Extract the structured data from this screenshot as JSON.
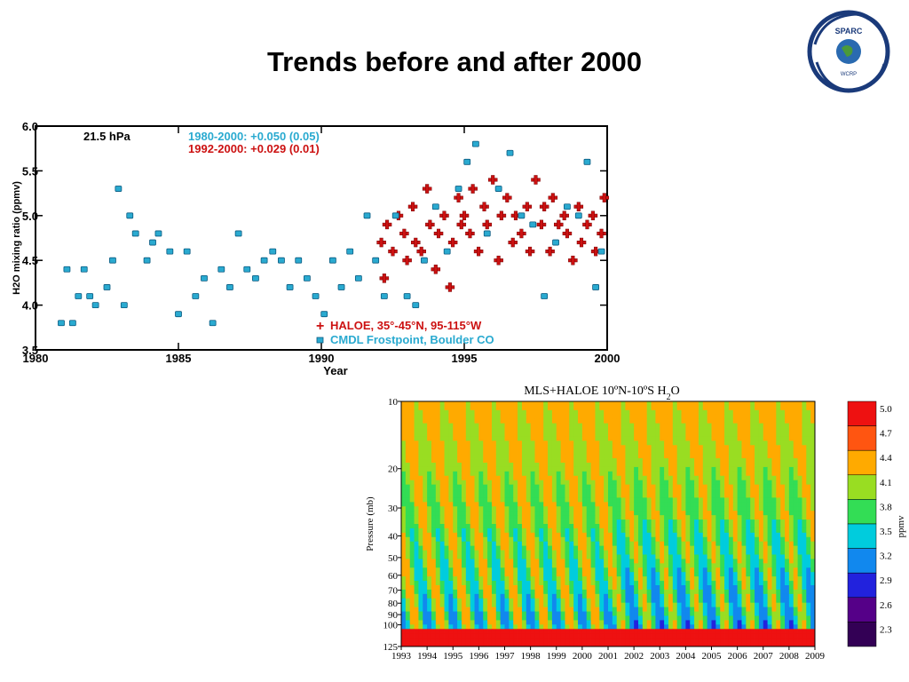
{
  "slide": {
    "title": "Trends before and after 2000"
  },
  "logo": {
    "text_top": "SPARC",
    "text_bottom": "WCRP"
  },
  "chart_data": [
    {
      "type": "scatter",
      "ylabel": "H2O mixing ratio (ppmv)",
      "xlabel": "Year",
      "xlim": [
        1980,
        2000
      ],
      "ylim": [
        3.5,
        6.0
      ],
      "xticks": [
        "1980",
        "1985",
        "1990",
        "1995",
        "2000"
      ],
      "yticks": [
        "3.5",
        "4.0",
        "4.5",
        "5.0",
        "5.5",
        "6.0"
      ],
      "annotation": "21.5 hPa",
      "trend_lines": [
        {
          "text": "1980-2000: +0.050 (0.05)",
          "color": "#2aaad0"
        },
        {
          "text": "1992-2000: +0.029 (0.01)",
          "color": "#cc1111"
        }
      ],
      "legend_position": "bottom-right",
      "series": [
        {
          "name": "HALOE, 35°-45°N, 95-115°W",
          "marker": "plus",
          "color": "#cc1111",
          "points": [
            [
              1992.1,
              4.7
            ],
            [
              1992.2,
              4.3
            ],
            [
              1992.3,
              4.9
            ],
            [
              1992.5,
              4.6
            ],
            [
              1992.7,
              5.0
            ],
            [
              1992.9,
              4.8
            ],
            [
              1993.0,
              4.5
            ],
            [
              1993.2,
              5.1
            ],
            [
              1993.3,
              4.7
            ],
            [
              1993.5,
              4.6
            ],
            [
              1993.7,
              5.3
            ],
            [
              1993.8,
              4.9
            ],
            [
              1994.0,
              4.4
            ],
            [
              1994.1,
              4.8
            ],
            [
              1994.3,
              5.0
            ],
            [
              1994.5,
              4.2
            ],
            [
              1994.6,
              4.7
            ],
            [
              1994.8,
              5.2
            ],
            [
              1994.9,
              4.9
            ],
            [
              1995.0,
              5.0
            ],
            [
              1995.2,
              4.8
            ],
            [
              1995.3,
              5.3
            ],
            [
              1995.5,
              4.6
            ],
            [
              1995.7,
              5.1
            ],
            [
              1995.8,
              4.9
            ],
            [
              1996.0,
              5.4
            ],
            [
              1996.2,
              4.5
            ],
            [
              1996.3,
              5.0
            ],
            [
              1996.5,
              5.2
            ],
            [
              1996.7,
              4.7
            ],
            [
              1996.8,
              5.0
            ],
            [
              1997.0,
              4.8
            ],
            [
              1997.2,
              5.1
            ],
            [
              1997.3,
              4.6
            ],
            [
              1997.5,
              5.4
            ],
            [
              1997.7,
              4.9
            ],
            [
              1997.8,
              5.1
            ],
            [
              1998.0,
              4.6
            ],
            [
              1998.1,
              5.2
            ],
            [
              1998.3,
              4.9
            ],
            [
              1998.5,
              5.0
            ],
            [
              1998.6,
              4.8
            ],
            [
              1998.8,
              4.5
            ],
            [
              1999.0,
              5.1
            ],
            [
              1999.1,
              4.7
            ],
            [
              1999.3,
              4.9
            ],
            [
              1999.5,
              5.0
            ],
            [
              1999.6,
              4.6
            ],
            [
              1999.8,
              4.8
            ],
            [
              1999.9,
              5.2
            ]
          ]
        },
        {
          "name": "CMDL Frostpoint, Boulder CO",
          "marker": "square",
          "color": "#2aaad0",
          "points": [
            [
              1980.9,
              3.8
            ],
            [
              1981.1,
              4.4
            ],
            [
              1981.3,
              3.8
            ],
            [
              1981.5,
              4.1
            ],
            [
              1981.7,
              4.4
            ],
            [
              1981.9,
              4.1
            ],
            [
              1982.1,
              4.0
            ],
            [
              1982.5,
              4.2
            ],
            [
              1982.7,
              4.5
            ],
            [
              1982.9,
              5.3
            ],
            [
              1983.1,
              4.0
            ],
            [
              1983.3,
              5.0
            ],
            [
              1983.5,
              4.8
            ],
            [
              1983.9,
              4.5
            ],
            [
              1984.1,
              4.7
            ],
            [
              1984.3,
              4.8
            ],
            [
              1984.7,
              4.6
            ],
            [
              1985.0,
              3.9
            ],
            [
              1985.3,
              4.6
            ],
            [
              1985.6,
              4.1
            ],
            [
              1985.9,
              4.3
            ],
            [
              1986.2,
              3.8
            ],
            [
              1986.5,
              4.4
            ],
            [
              1986.8,
              4.2
            ],
            [
              1987.1,
              4.8
            ],
            [
              1987.4,
              4.4
            ],
            [
              1987.7,
              4.3
            ],
            [
              1988.0,
              4.5
            ],
            [
              1988.3,
              4.6
            ],
            [
              1988.6,
              4.5
            ],
            [
              1988.9,
              4.2
            ],
            [
              1989.2,
              4.5
            ],
            [
              1989.5,
              4.3
            ],
            [
              1989.8,
              4.1
            ],
            [
              1990.1,
              3.9
            ],
            [
              1990.4,
              4.5
            ],
            [
              1990.7,
              4.2
            ],
            [
              1991.0,
              4.6
            ],
            [
              1991.3,
              4.3
            ],
            [
              1991.6,
              5.0
            ],
            [
              1991.9,
              4.5
            ],
            [
              1992.2,
              4.1
            ],
            [
              1992.6,
              5.0
            ],
            [
              1993.0,
              4.1
            ],
            [
              1993.3,
              4.0
            ],
            [
              1993.6,
              4.5
            ],
            [
              1994.0,
              5.1
            ],
            [
              1994.4,
              4.6
            ],
            [
              1994.8,
              5.3
            ],
            [
              1995.1,
              5.6
            ],
            [
              1995.4,
              5.8
            ],
            [
              1995.8,
              4.8
            ],
            [
              1996.2,
              5.3
            ],
            [
              1996.6,
              5.7
            ],
            [
              1997.0,
              5.0
            ],
            [
              1997.4,
              4.9
            ],
            [
              1997.8,
              4.1
            ],
            [
              1998.2,
              4.7
            ],
            [
              1998.6,
              5.1
            ],
            [
              1999.0,
              5.0
            ],
            [
              1999.3,
              5.6
            ],
            [
              1999.6,
              4.2
            ],
            [
              1999.8,
              4.6
            ]
          ]
        }
      ]
    },
    {
      "type": "heatmap",
      "title": "MLS+HALOE 10ºN-10ºS H",
      "title_sub": "2",
      "title_tail": "O",
      "ylabel": "Pressure (mb)",
      "yticks": [
        "10",
        "20",
        "30",
        "40",
        "50",
        "60",
        "70",
        "80",
        "90",
        "100",
        "125"
      ],
      "xticks": [
        "1993",
        "1994",
        "1995",
        "1996",
        "1997",
        "1998",
        "1999",
        "2000",
        "2001",
        "2002",
        "2003",
        "2004",
        "2005",
        "2006",
        "2007",
        "2008",
        "2009"
      ],
      "xlim": [
        1993,
        2009
      ],
      "ylim": [
        125,
        10
      ],
      "y_scale": "log",
      "colorbar": {
        "unit": "ppmv",
        "levels": [
          "5.0",
          "4.7",
          "4.4",
          "4.1",
          "3.8",
          "3.5",
          "3.2",
          "2.9",
          "2.6",
          "2.3"
        ],
        "colors": [
          "#ee1111",
          "#ff5511",
          "#ffaa00",
          "#99dd22",
          "#33dd55",
          "#00ccdd",
          "#1188ee",
          "#2222dd",
          "#550088",
          "#330055"
        ]
      }
    }
  ]
}
